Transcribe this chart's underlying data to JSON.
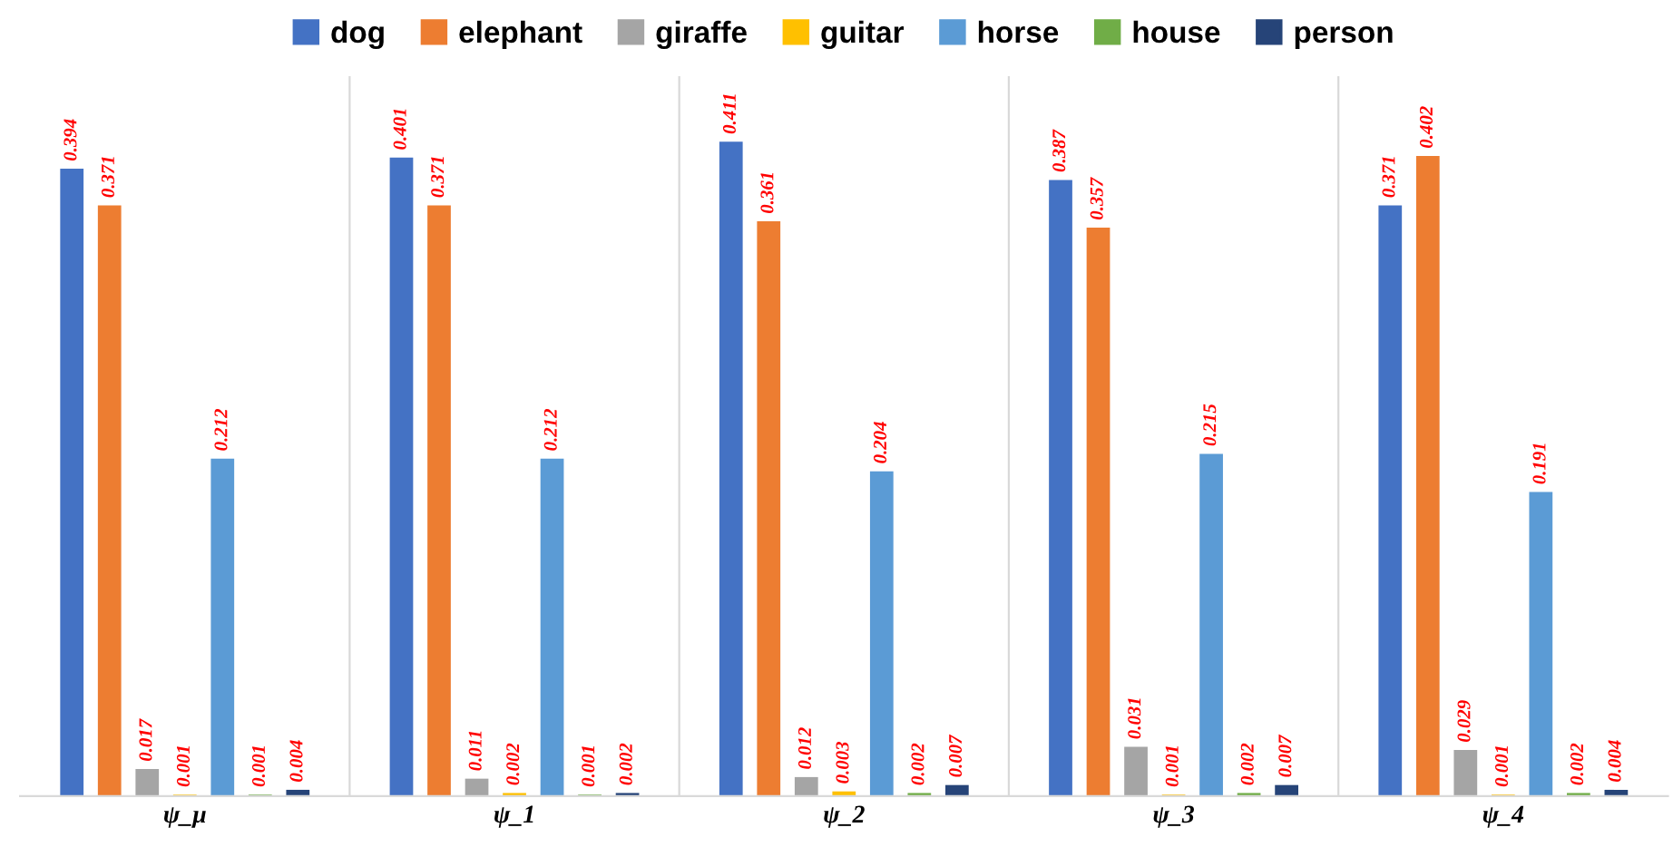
{
  "chart_data": {
    "type": "bar",
    "categories": [
      "ψ_μ",
      "ψ_1",
      "ψ_2",
      "ψ_3",
      "ψ_4"
    ],
    "series": [
      {
        "name": "dog",
        "color": "#4472c4",
        "values": [
          0.394,
          0.401,
          0.411,
          0.387,
          0.371
        ]
      },
      {
        "name": "elephant",
        "color": "#ed7d31",
        "values": [
          0.371,
          0.371,
          0.361,
          0.357,
          0.402
        ]
      },
      {
        "name": "giraffe",
        "color": "#a5a5a5",
        "values": [
          0.017,
          0.011,
          0.012,
          0.031,
          0.029
        ]
      },
      {
        "name": "guitar",
        "color": "#ffc000",
        "values": [
          0.001,
          0.002,
          0.003,
          0.001,
          0.001
        ]
      },
      {
        "name": "horse",
        "color": "#5b9bd5",
        "values": [
          0.212,
          0.212,
          0.204,
          0.215,
          0.191
        ]
      },
      {
        "name": "house",
        "color": "#70ad47",
        "values": [
          0.001,
          0.001,
          0.002,
          0.002,
          0.002
        ]
      },
      {
        "name": "person",
        "color": "#264478",
        "values": [
          0.004,
          0.002,
          0.007,
          0.007,
          0.004
        ]
      }
    ],
    "data_labels": true,
    "legend": "top",
    "grid": "x",
    "tick_labels": "x"
  }
}
